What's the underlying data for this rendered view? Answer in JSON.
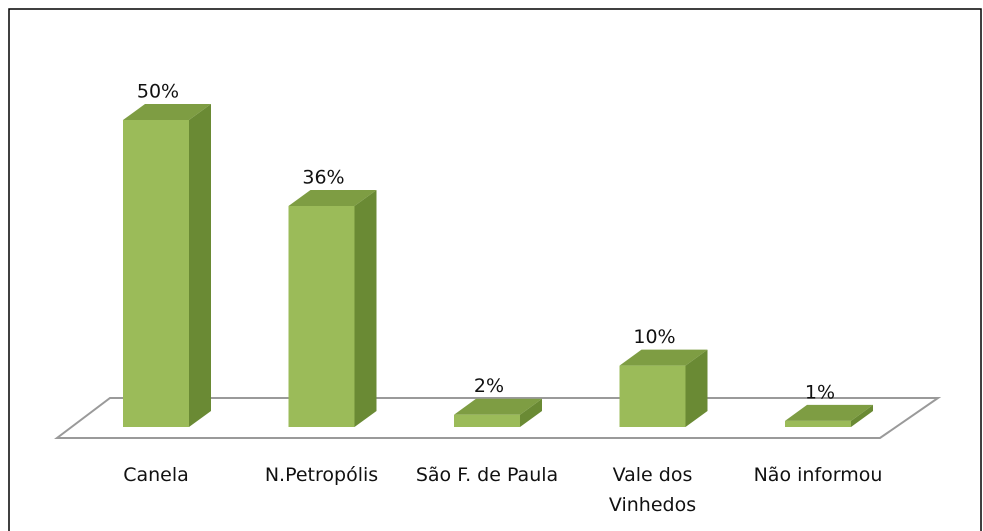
{
  "chart_data": {
    "type": "bar3d",
    "categories": [
      "Canela",
      "N.Petropólis",
      "São F. de Paula",
      "Vale dos Vinhedos",
      "Não informou"
    ],
    "values": [
      50,
      36,
      2,
      10,
      1
    ],
    "value_labels": [
      "50%",
      "36%",
      "2%",
      "10%",
      "1%"
    ],
    "color": "#9bbb59"
  }
}
